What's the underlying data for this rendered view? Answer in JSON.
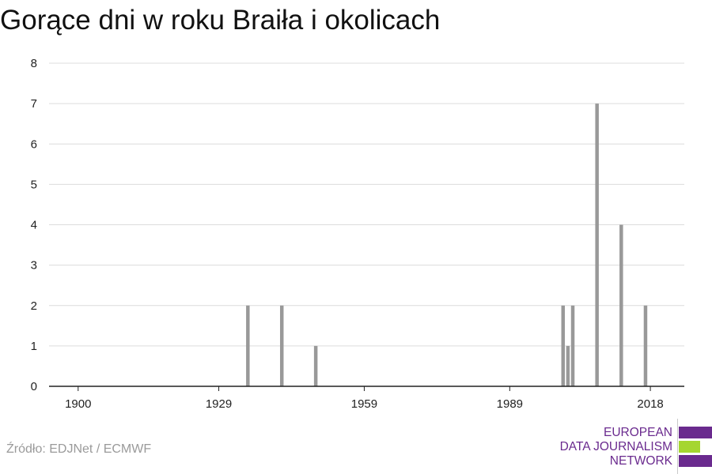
{
  "title": "Gorące dni w roku Braiła i okolicach",
  "source": "Źródło: EDJNet / ECMWF",
  "logo": {
    "line1": "EUROPEAN",
    "line2": "DATA JOURNALISM",
    "line3": "NETWORK",
    "colors": {
      "purple": "#6a2a8e",
      "green": "#a5d630"
    }
  },
  "chart_data": {
    "type": "bar",
    "x": [
      1935,
      1942,
      1949,
      2000,
      2001,
      2002,
      2007,
      2012,
      2017
    ],
    "values": [
      2,
      2,
      1,
      2,
      1,
      2,
      7,
      4,
      2
    ],
    "xlim": [
      1894,
      2025
    ],
    "ylim": [
      0,
      8
    ],
    "xticks": [
      1900,
      1929,
      1959,
      1989,
      2018
    ],
    "yticks": [
      0,
      1,
      2,
      3,
      4,
      5,
      6,
      7,
      8
    ],
    "grid": true,
    "bar_color": "#999999",
    "xlabel": "",
    "ylabel": ""
  }
}
